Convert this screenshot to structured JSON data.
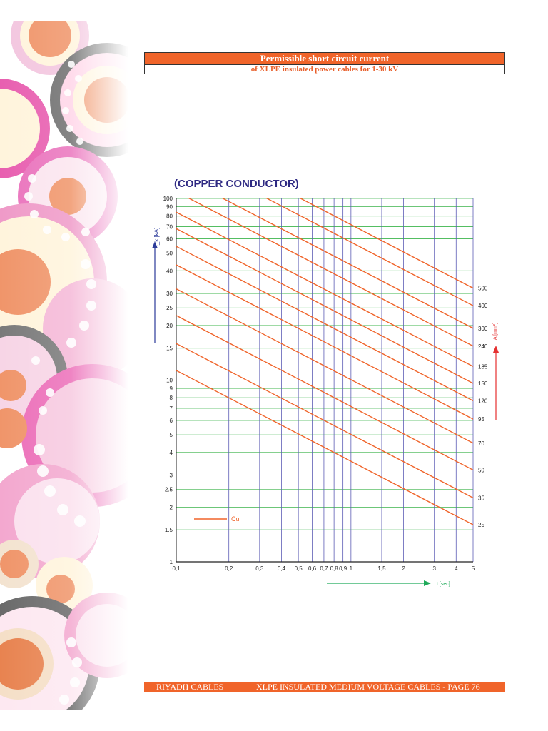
{
  "header": {
    "title": "Permissible short circuit current",
    "subtitle": "of XLPE insulated power cables for 1-30 kV"
  },
  "chart_heading": "(COPPER CONDUCTOR)",
  "footer": {
    "left": "RIYADH CABLES",
    "right": "XLPE INSULATED MEDIUM VOLTAGE CABLES - PAGE 76"
  },
  "colors": {
    "accent": "#f0642a",
    "heading": "#2f2a83",
    "line": "#f0642a",
    "grid_h": "#3cb44b",
    "grid_v": "#5d5db5",
    "x_arrow": "#1faa5a",
    "y_arrow": "#2b3a9a",
    "right_arrow": "#e53030"
  },
  "chart_data": {
    "type": "line",
    "x_scale": "log",
    "y_scale": "log",
    "xlim": [
      0.1,
      5
    ],
    "ylim": [
      1,
      100
    ],
    "xlabel": "t [sec]",
    "ylabel": "I_k [kA]",
    "right_label": "A [mm²]",
    "x_ticks": [
      "0,1",
      "0,2",
      "0,3",
      "0,4",
      "0,5",
      "0,6",
      "0,7",
      "0,8",
      "0,9",
      "1",
      "1,5",
      "2",
      "3",
      "4",
      "5"
    ],
    "x_tick_values": [
      0.1,
      0.2,
      0.3,
      0.4,
      0.5,
      0.6,
      0.7,
      0.8,
      0.9,
      1,
      1.5,
      2,
      3,
      4,
      5
    ],
    "y_ticks": [
      "1",
      "1.5",
      "2",
      "2.5",
      "3",
      "4",
      "5",
      "6",
      "7",
      "8",
      "9",
      "10",
      "15",
      "20",
      "25",
      "30",
      "40",
      "50",
      "60",
      "70",
      "80",
      "90",
      "100"
    ],
    "y_tick_values": [
      1,
      1.5,
      2,
      2.5,
      3,
      4,
      5,
      6,
      7,
      8,
      9,
      10,
      15,
      20,
      25,
      30,
      40,
      50,
      60,
      70,
      80,
      90,
      100
    ],
    "legend": "Cu",
    "series": [
      {
        "name": "25",
        "x": [
          0.1,
          5
        ],
        "y": [
          11.3,
          1.6
        ]
      },
      {
        "name": "35",
        "x": [
          0.1,
          5
        ],
        "y": [
          15.9,
          2.25
        ]
      },
      {
        "name": "50",
        "x": [
          0.1,
          5
        ],
        "y": [
          22.7,
          3.2
        ]
      },
      {
        "name": "70",
        "x": [
          0.1,
          5
        ],
        "y": [
          31.8,
          4.5
        ]
      },
      {
        "name": "95",
        "x": [
          0.1,
          5
        ],
        "y": [
          43.1,
          6.1
        ]
      },
      {
        "name": "120",
        "x": [
          0.1,
          5
        ],
        "y": [
          54.5,
          7.7
        ]
      },
      {
        "name": "150",
        "x": [
          0.1,
          5
        ],
        "y": [
          68.2,
          9.6
        ]
      },
      {
        "name": "185",
        "x": [
          0.1,
          5
        ],
        "y": [
          84,
          11.9
        ]
      },
      {
        "name": "240",
        "x": [
          0.1,
          5
        ],
        "y": [
          109,
          15.4
        ]
      },
      {
        "name": "300",
        "x": [
          0.1,
          5
        ],
        "y": [
          136,
          19.3
        ]
      },
      {
        "name": "400",
        "x": [
          0.1,
          5
        ],
        "y": [
          182,
          25.7
        ]
      },
      {
        "name": "500",
        "x": [
          0.1,
          5
        ],
        "y": [
          227,
          32.1
        ]
      }
    ]
  }
}
